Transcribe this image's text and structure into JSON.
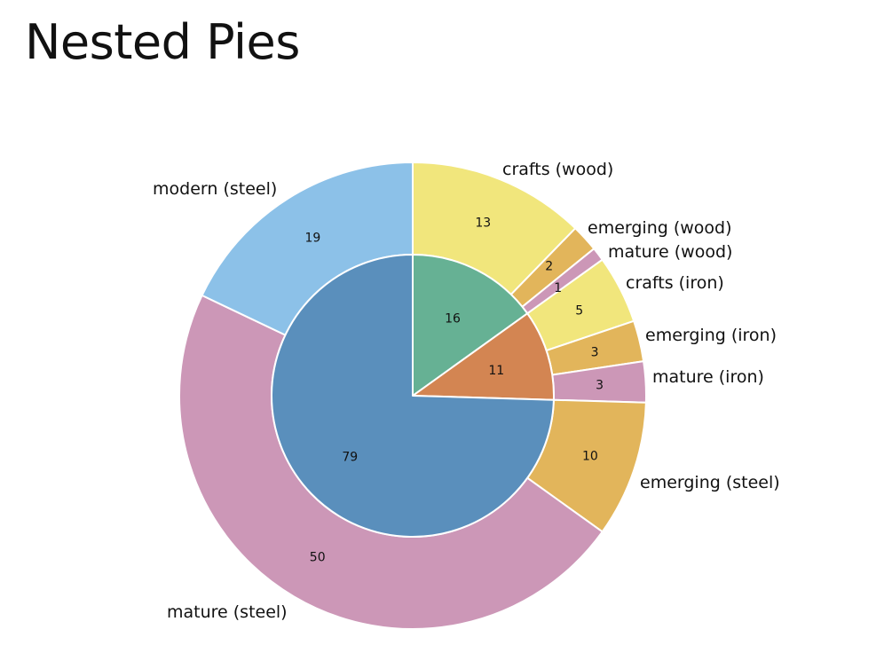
{
  "title": "Nested Pies",
  "chart_data": {
    "type": "pie",
    "nested": true,
    "start_angle_deg": 0,
    "direction": "clockwise",
    "inner_ring": [
      {
        "label": "",
        "value": 16,
        "color": "#66b194"
      },
      {
        "label": "",
        "value": 11,
        "color": "#d38552"
      },
      {
        "label": "",
        "value": 79,
        "color": "#5a8fbc"
      }
    ],
    "outer_ring": [
      {
        "label": "crafts (wood)",
        "value": 13,
        "color": "#f1e67c"
      },
      {
        "label": "emerging (wood)",
        "value": 2,
        "color": "#e2b55b"
      },
      {
        "label": "mature (wood)",
        "value": 1,
        "color": "#cc97b7"
      },
      {
        "label": "crafts (iron)",
        "value": 5,
        "color": "#f1e67c"
      },
      {
        "label": "emerging (iron)",
        "value": 3,
        "color": "#e2b55b"
      },
      {
        "label": "mature (iron)",
        "value": 3,
        "color": "#cc97b7"
      },
      {
        "label": "emerging (steel)",
        "value": 10,
        "color": "#e2b55b"
      },
      {
        "label": "mature (steel)",
        "value": 50,
        "color": "#cc97b7"
      },
      {
        "label": "modern (steel)",
        "value": 19,
        "color": "#8cc1e8"
      }
    ]
  }
}
